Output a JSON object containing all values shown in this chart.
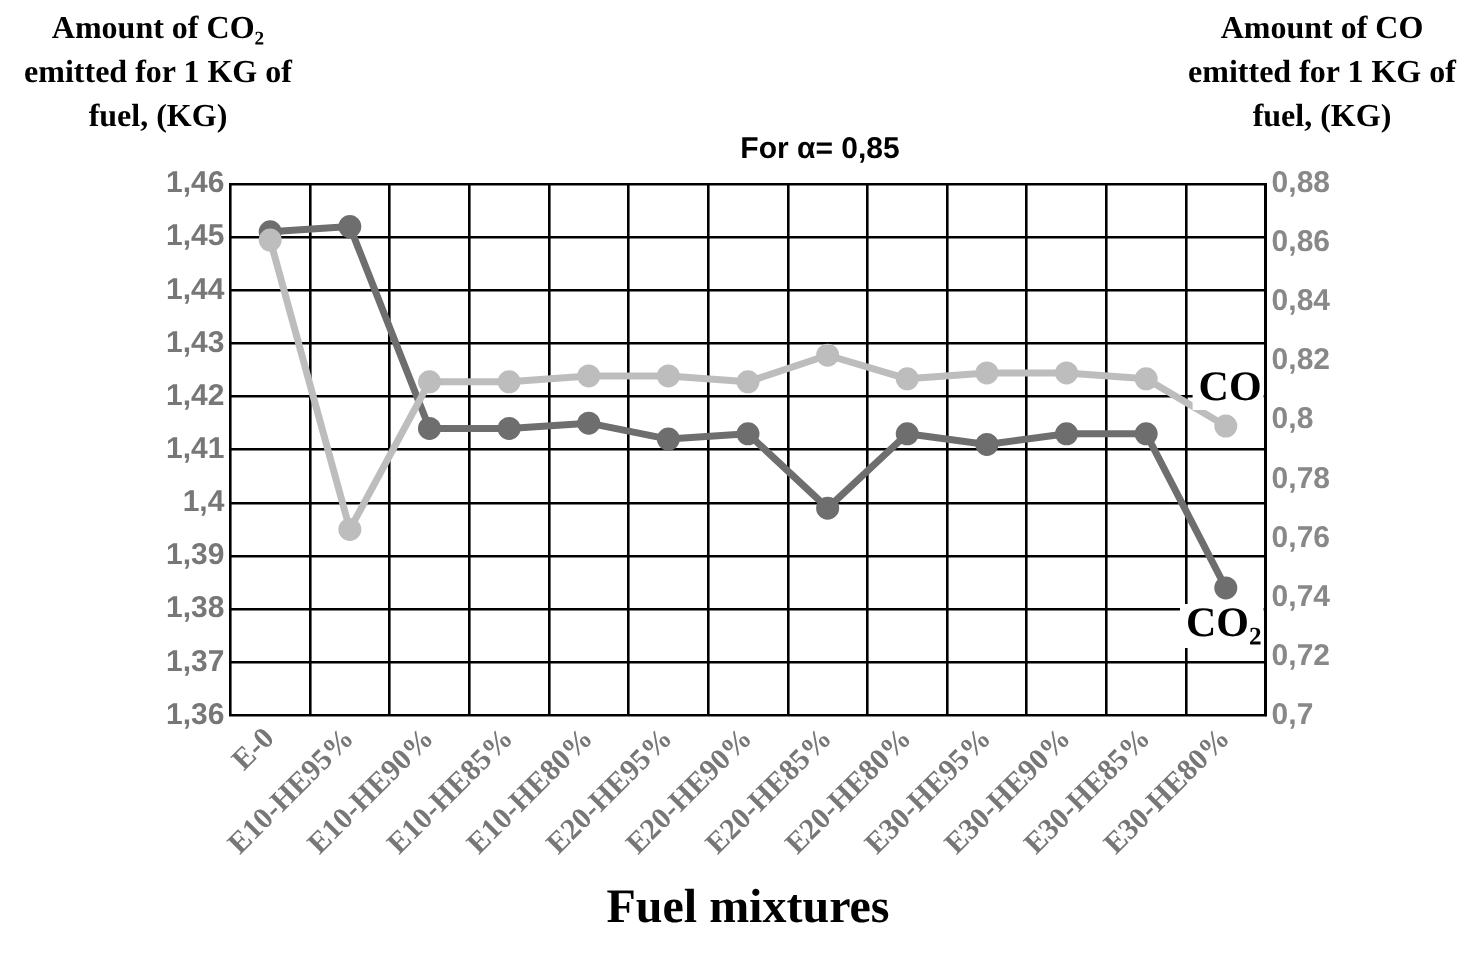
{
  "chart_data": {
    "type": "line",
    "title": "For α= 0,85",
    "xlabel": "Fuel mixtures",
    "ylabel": "Amount of CO₂ emitted for 1 KG of fuel, (KG)",
    "y2label": "Amount of CO emitted for 1 KG of fuel, (KG)",
    "categories": [
      "E-0",
      "E10-HE95%",
      "E10-HE90%",
      "E10-HE85%",
      "E10-HE80%",
      "E20-HE95%",
      "E20-HE90%",
      "E20-HE85%",
      "E20-HE80%",
      "E30-HE95%",
      "E30-HE90%",
      "E30-HE85%",
      "E30-HE80%"
    ],
    "series": [
      {
        "name": "CO₂",
        "color": "#6e6e6e",
        "values": [
          1.451,
          1.452,
          1.414,
          1.414,
          1.415,
          1.412,
          1.413,
          1.399,
          1.413,
          1.411,
          1.413,
          1.413,
          1.384
        ]
      },
      {
        "name": "CO",
        "color": "#bdbdbd",
        "axis": "y2",
        "values": [
          0.861,
          0.763,
          0.813,
          0.813,
          0.815,
          0.815,
          0.813,
          0.822,
          0.814,
          0.816,
          0.816,
          0.814,
          0.798
        ]
      }
    ],
    "ylim": [
      1.36,
      1.46
    ],
    "yticks": [
      {
        "value": 1.36,
        "label": "1,36"
      },
      {
        "value": 1.37,
        "label": "1,37"
      },
      {
        "value": 1.38,
        "label": "1,38"
      },
      {
        "value": 1.39,
        "label": "1,39"
      },
      {
        "value": 1.4,
        "label": "1,4"
      },
      {
        "value": 1.41,
        "label": "1,41"
      },
      {
        "value": 1.42,
        "label": "1,42"
      },
      {
        "value": 1.43,
        "label": "1,43"
      },
      {
        "value": 1.44,
        "label": "1,44"
      },
      {
        "value": 1.45,
        "label": "1,45"
      },
      {
        "value": 1.46,
        "label": "1,46"
      }
    ],
    "y2lim": [
      0.7,
      0.88
    ],
    "y2ticks": [
      {
        "value": 0.7,
        "label": "0,7"
      },
      {
        "value": 0.72,
        "label": "0,72"
      },
      {
        "value": 0.74,
        "label": "0,74"
      },
      {
        "value": 0.76,
        "label": "0,76"
      },
      {
        "value": 0.78,
        "label": "0,78"
      },
      {
        "value": 0.8,
        "label": "0,8"
      },
      {
        "value": 0.82,
        "label": "0,82"
      },
      {
        "value": 0.84,
        "label": "0,84"
      },
      {
        "value": 0.86,
        "label": "0,86"
      },
      {
        "value": 0.88,
        "label": "0,88"
      }
    ],
    "grid": true,
    "legend": false,
    "marker": "circle",
    "line_style": "solid"
  }
}
